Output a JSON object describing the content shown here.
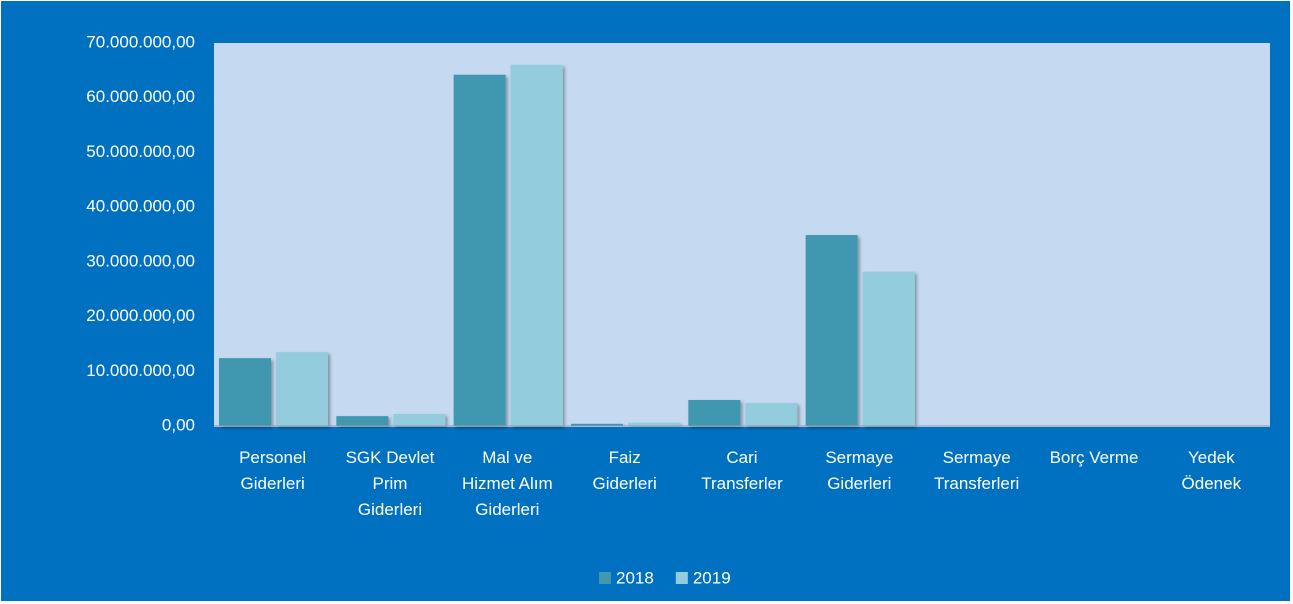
{
  "chart_data": {
    "type": "bar",
    "categories": [
      "Personel Giderleri",
      "SGK Devlet Prim Giderleri",
      "Mal ve Hizmet Alım Giderleri",
      "Faiz Giderleri",
      "Cari Transferler",
      "Sermaye Giderleri",
      "Sermaye Transferleri",
      "Borç Verme",
      "Yedek Ödenek"
    ],
    "series": [
      {
        "name": "2018",
        "color": "#4198B0",
        "values": [
          12400000,
          1800000,
          64200000,
          400000,
          4750000,
          34900000,
          0,
          0,
          0
        ]
      },
      {
        "name": "2019",
        "color": "#93CDDD",
        "values": [
          13500000,
          2200000,
          66000000,
          600000,
          4200000,
          28200000,
          0,
          0,
          0
        ]
      }
    ],
    "ylim": [
      0,
      70000000
    ],
    "yticks": [
      {
        "value": 0,
        "label": "0,00"
      },
      {
        "value": 10000000,
        "label": "10.000.000,00"
      },
      {
        "value": 20000000,
        "label": "20.000.000,00"
      },
      {
        "value": 30000000,
        "label": "30.000.000,00"
      },
      {
        "value": 40000000,
        "label": "40.000.000,00"
      },
      {
        "value": 50000000,
        "label": "50.000.000,00"
      },
      {
        "value": 60000000,
        "label": "60.000.000,00"
      },
      {
        "value": 70000000,
        "label": "70.000.000,00"
      }
    ],
    "grid": false,
    "legend": "bottom"
  }
}
